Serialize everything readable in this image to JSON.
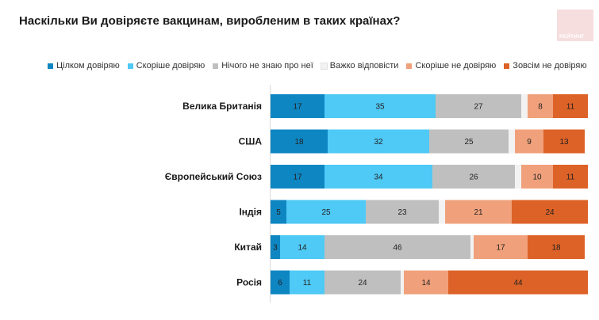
{
  "title": "Наскільки Ви довіряєте вакцинам, виробленим в таких країнах?",
  "logo_text": "РЕЙТИНГ",
  "chart_data": {
    "type": "bar",
    "orientation": "horizontal",
    "stacked": true,
    "title": "Наскільки Ви довіряєте вакцинам, виробленим в таких країнах?",
    "legend_position": "top",
    "categories": [
      "Велика Британія",
      "США",
      "Європейський Союз",
      "Індія",
      "Китай",
      "Росія"
    ],
    "series": [
      {
        "name": "Цілком довіряю",
        "color": "#0e86c2",
        "values": [
          17,
          18,
          17,
          5,
          3,
          6
        ]
      },
      {
        "name": "Скоріше довіряю",
        "color": "#4fc9f5",
        "values": [
          35,
          32,
          34,
          25,
          14,
          11
        ]
      },
      {
        "name": "Нічого не знаю про неї",
        "color": "#bfbfbf",
        "values": [
          27,
          25,
          26,
          23,
          46,
          24
        ]
      },
      {
        "name": "Важко відповісти",
        "color": "#f2f2f2",
        "values": [
          2,
          2,
          2,
          2,
          1,
          1
        ]
      },
      {
        "name": "Скоріше не довіряю",
        "color": "#f0a17b",
        "values": [
          8,
          9,
          10,
          21,
          17,
          14
        ]
      },
      {
        "name": "Зовсім не довіряю",
        "color": "#dd6227",
        "values": [
          11,
          13,
          11,
          24,
          18,
          44
        ]
      }
    ]
  }
}
